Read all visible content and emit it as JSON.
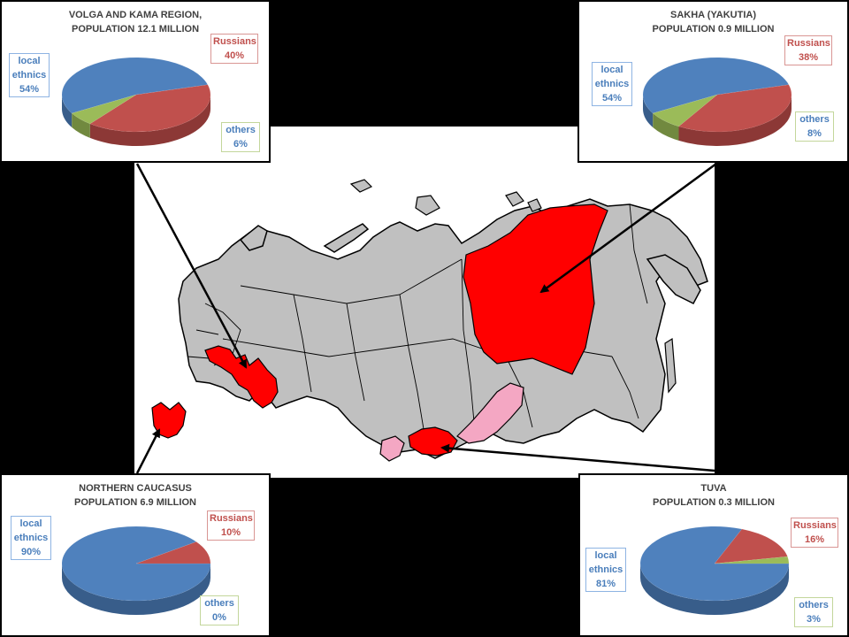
{
  "colors": {
    "local": "#4f81bd",
    "local_dark": "#385d8a",
    "russians": "#c0504d",
    "russians_dark": "#8c3836",
    "others": "#9bbb59",
    "others_dark": "#71893f",
    "map_region": "#c0c0c0",
    "highlight_red": "#ff0000",
    "highlight_pink": "#f4a7c3"
  },
  "chart_data": [
    {
      "type": "pie",
      "title": "VOLGA AND KAMA REGION, POPULATION 12.1 MILLION",
      "title_lines": [
        "VOLGA AND KAMA REGION,",
        "POPULATION 12.1 MILLION"
      ],
      "labels": [
        "local ethnics",
        "Russians",
        "others"
      ],
      "values": [
        54,
        40,
        6
      ],
      "value_labels": [
        "54%",
        "40%",
        "6%"
      ]
    },
    {
      "type": "pie",
      "title": "SAKHA (YAKUTIA) POPULATION 0.9 MILLION",
      "title_lines": [
        "SAKHA (YAKUTIA)",
        "POPULATION 0.9 MILLION"
      ],
      "labels": [
        "local ethnics",
        "Russians",
        "others"
      ],
      "values": [
        54,
        38,
        8
      ],
      "value_labels": [
        "54%",
        "38%",
        "8%"
      ]
    },
    {
      "type": "pie",
      "title": "NORTHERN CAUCASUS POPULATION 6.9 MILLION",
      "title_lines": [
        "NORTHERN CAUCASUS",
        "POPULATION 6.9 MILLION"
      ],
      "labels": [
        "local ethnics",
        "Russians",
        "others"
      ],
      "values": [
        90,
        10,
        0
      ],
      "value_labels": [
        "90%",
        "10%",
        "0%"
      ]
    },
    {
      "type": "pie",
      "title": "TUVA POPULATION 0.3 MILLION",
      "title_lines": [
        "TUVA",
        "POPULATION 0.3 MILLION"
      ],
      "labels": [
        "local ethnics",
        "Russians",
        "others"
      ],
      "values": [
        81,
        16,
        3
      ],
      "value_labels": [
        "81%",
        "16%",
        "3%"
      ]
    }
  ],
  "label_words": {
    "local": [
      "local",
      "ethnics"
    ],
    "russians": "Russians",
    "others": "others"
  }
}
